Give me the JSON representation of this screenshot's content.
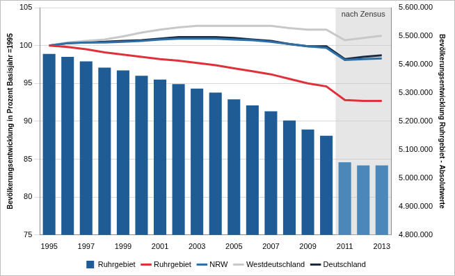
{
  "chart_data": {
    "type": "bar",
    "y_label": "Bevölkerungsentwicklung in Prozent Basisjahr =1995",
    "y2_label": "Bevölkerungsentwicklung Ruhrgebiet - Absolutwerte",
    "categories": [
      "1995",
      null,
      "1997",
      null,
      "1999",
      null,
      "2001",
      null,
      "2003",
      null,
      "2005",
      null,
      "2007",
      null,
      "2009",
      null,
      "2011",
      null,
      "2013"
    ],
    "ylim": [
      75,
      105
    ],
    "yticks": [
      75,
      80,
      85,
      90,
      95,
      100,
      105
    ],
    "y2lim": [
      4800000,
      5600000
    ],
    "y2ticks": [
      {
        "value": 4800000,
        "label": "4.800.000"
      },
      {
        "value": 4900000,
        "label": "4.900.000"
      },
      {
        "value": 5000000,
        "label": "5.000.000"
      },
      {
        "value": 5100000,
        "label": "5.100.000"
      },
      {
        "value": 5200000,
        "label": "5.200.000"
      },
      {
        "value": 5300000,
        "label": "5.300.000"
      },
      {
        "value": 5400000,
        "label": "5.400.000"
      },
      {
        "value": 5500000,
        "label": "5.500.000"
      },
      {
        "value": 5600000,
        "label": "5.600.000"
      }
    ],
    "grid": true,
    "legend": "bottom",
    "annotations": [
      {
        "text": "nach Zensus",
        "x_from": "2011",
        "x_to": "2013"
      }
    ],
    "series": [
      {
        "name": "Ruhrgebiet",
        "type": "bar",
        "axis": "y2",
        "colors": [
          "#1f5c96",
          "#1f5c96",
          "#1f5c96",
          "#1f5c96",
          "#1f5c96",
          "#1f5c96",
          "#1f5c96",
          "#1f5c96",
          "#1f5c96",
          "#1f5c96",
          "#1f5c96",
          "#1f5c96",
          "#1f5c96",
          "#1f5c96",
          "#1f5c96",
          "#1f5c96",
          "#4b87b9",
          "#4b87b9",
          "#4b87b9"
        ],
        "color": "#1f5c96",
        "values": [
          5437000,
          5427000,
          5411000,
          5389000,
          5379000,
          5360000,
          5347000,
          5331000,
          5315000,
          5301000,
          5277000,
          5256000,
          5235000,
          5203000,
          5171000,
          5149000,
          5056000,
          5045000,
          5045000
        ]
      },
      {
        "name": "Ruhrgebiet",
        "type": "line",
        "color": "#e0303a",
        "values": [
          100,
          99.8,
          99.5,
          99.1,
          98.8,
          98.5,
          98.2,
          98.0,
          97.7,
          97.4,
          97.0,
          96.6,
          96.2,
          95.6,
          95.0,
          94.6,
          92.8,
          92.7,
          92.7
        ]
      },
      {
        "name": "NRW",
        "type": "line",
        "color": "#2f6fa8",
        "values": [
          100,
          100.3,
          100.4,
          100.4,
          100.5,
          100.6,
          100.8,
          100.9,
          100.9,
          100.9,
          100.8,
          100.7,
          100.5,
          100.2,
          99.9,
          99.7,
          98.1,
          98.2,
          98.3
        ]
      },
      {
        "name": "Westdeutschland",
        "type": "line",
        "color": "#c8c8c8",
        "values": [
          100,
          100.4,
          100.6,
          100.8,
          101.2,
          101.7,
          102.1,
          102.4,
          102.6,
          102.6,
          102.6,
          102.6,
          102.6,
          102.3,
          102.1,
          102.1,
          100.7,
          101.0,
          101.3
        ]
      },
      {
        "name": "Deutschland",
        "type": "line",
        "color": "#1b2a41",
        "values": [
          100,
          100.3,
          100.4,
          100.5,
          100.6,
          100.7,
          100.9,
          101.1,
          101.1,
          101.1,
          101.0,
          100.8,
          100.6,
          100.2,
          99.9,
          99.9,
          98.2,
          98.5,
          98.7
        ]
      }
    ]
  }
}
